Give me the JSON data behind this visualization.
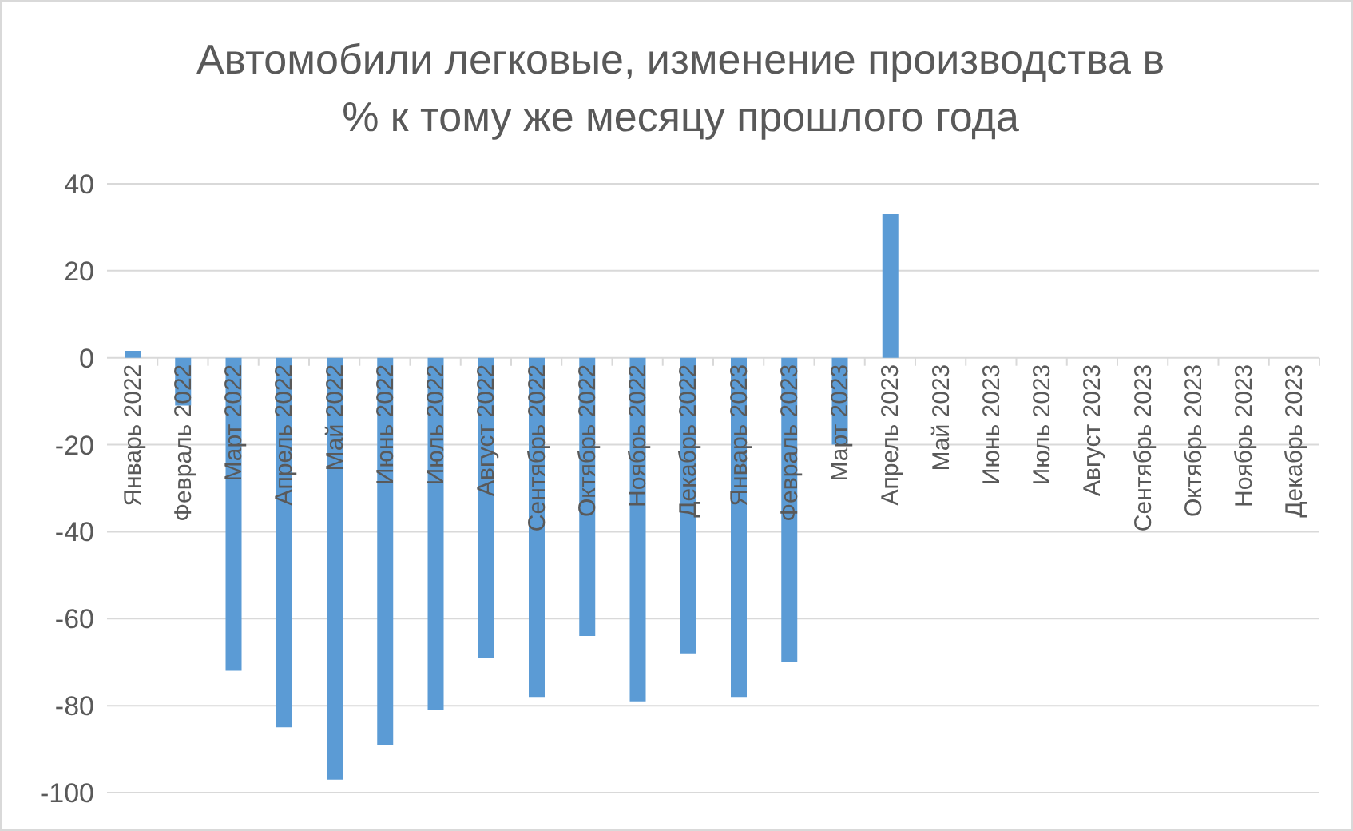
{
  "chart_data": {
    "type": "bar",
    "title": "Автомобили легковые, изменение производства в % к тому же месяцу прошлого года",
    "categories": [
      "Январь 2022",
      "Февраль 2022",
      "Март 2022",
      "Апрель 2022",
      "Май 2022",
      "Июнь 2022",
      "Июль 2022",
      "Август 2022",
      "Сентябрь 2022",
      "Октябрь 2022",
      "Ноябрь 2022",
      "Декабрь 2022",
      "Январь 2023",
      "Февраль 2023",
      "Март 2023",
      "Апрель 2023",
      "Май 2023",
      "Июнь 2023",
      "Июль 2023",
      "Август 2023",
      "Сентябрь 2023",
      "Октябрь 2023",
      "Ноябрь 2023",
      "Декабрь 2023"
    ],
    "values": [
      1.6,
      -11,
      -72,
      -85,
      -97,
      -89,
      -81,
      -69,
      -78,
      -64,
      -79,
      -68,
      -78,
      -70,
      -20,
      33,
      null,
      null,
      null,
      null,
      null,
      null,
      null,
      null
    ],
    "color": "#5b9bd5",
    "ylim": [
      -100,
      40
    ],
    "yticks": [
      -100,
      -80,
      -60,
      -40,
      -20,
      0,
      20,
      40
    ],
    "grid": "y",
    "legend": false
  }
}
